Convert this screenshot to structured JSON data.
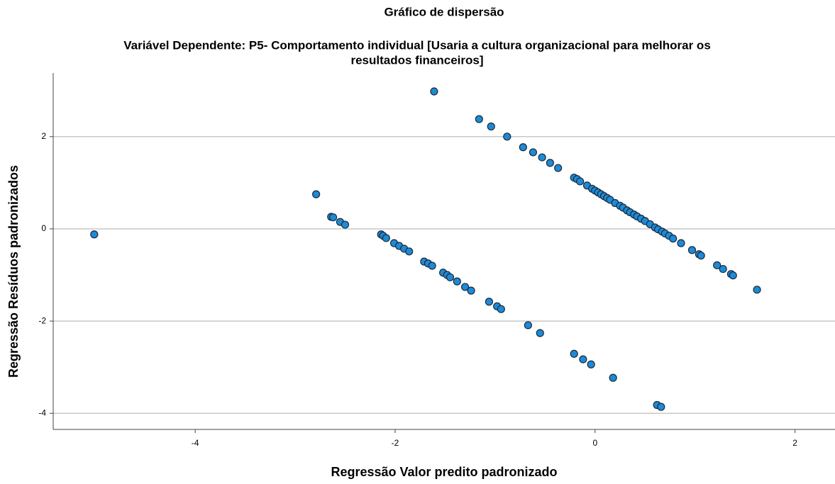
{
  "chart_data": {
    "type": "scatter",
    "title": "Gráfico de dispersão",
    "subtitle": [
      "Variável Dependente: P5- Comportamento individual  [Usaria a cultura organizacional para melhorar os",
      "resultados financeiros]"
    ],
    "x_label": "Regressão Valor predito padronizado",
    "y_label": "Regressão Resíduos padronizados",
    "xlim": [
      -5.42,
      2.4
    ],
    "ylim": [
      -4.35,
      3.38
    ],
    "xticks": [
      -4,
      -2,
      0,
      2
    ],
    "yticks": [
      -4,
      -2,
      0,
      2
    ],
    "grid": "y",
    "color": "#1e8ad6",
    "series": [
      {
        "name": null,
        "x": [
          -5.01,
          -2.79,
          -2.64,
          -2.62,
          -2.55,
          -2.5,
          -2.14,
          -2.12,
          -2.09,
          -2.01,
          -1.96,
          -1.91,
          -1.86,
          -1.71,
          -1.67,
          -1.63,
          -1.52,
          -1.48,
          -1.45,
          -1.38,
          -1.3,
          -1.24,
          -1.06,
          -0.98,
          -0.94,
          -0.67,
          -0.55,
          -0.21,
          -0.12,
          -0.04,
          0.18,
          0.62,
          0.66,
          -1.61,
          -1.16,
          -1.04,
          -0.88,
          -0.72,
          -0.62,
          -0.53,
          -0.45,
          -0.37,
          -0.21,
          -0.18,
          -0.15,
          -0.08,
          -0.03,
          0.0,
          0.03,
          0.06,
          0.09,
          0.12,
          0.15,
          0.2,
          0.25,
          0.28,
          0.32,
          0.35,
          0.39,
          0.42,
          0.46,
          0.5,
          0.55,
          0.6,
          0.63,
          0.67,
          0.7,
          0.74,
          0.78,
          0.86,
          0.97,
          1.04,
          1.06,
          1.22,
          1.28,
          1.36,
          1.38,
          1.62
        ],
        "values": [
          -0.12,
          0.75,
          0.26,
          0.25,
          0.15,
          0.09,
          -0.12,
          -0.15,
          -0.2,
          -0.31,
          -0.37,
          -0.43,
          -0.49,
          -0.71,
          -0.75,
          -0.8,
          -0.95,
          -1.0,
          -1.05,
          -1.14,
          -1.26,
          -1.34,
          -1.58,
          -1.68,
          -1.74,
          -2.09,
          -2.26,
          -2.71,
          -2.83,
          -2.94,
          -3.23,
          -3.82,
          -3.86,
          2.98,
          2.38,
          2.22,
          2.0,
          1.77,
          1.66,
          1.55,
          1.43,
          1.32,
          1.11,
          1.08,
          1.03,
          0.94,
          0.87,
          0.83,
          0.79,
          0.75,
          0.71,
          0.67,
          0.63,
          0.56,
          0.5,
          0.46,
          0.4,
          0.36,
          0.31,
          0.27,
          0.22,
          0.17,
          0.1,
          0.03,
          -0.01,
          -0.06,
          -0.1,
          -0.15,
          -0.21,
          -0.31,
          -0.46,
          -0.55,
          -0.58,
          -0.79,
          -0.87,
          -0.98,
          -1.01,
          -1.32
        ]
      }
    ]
  }
}
